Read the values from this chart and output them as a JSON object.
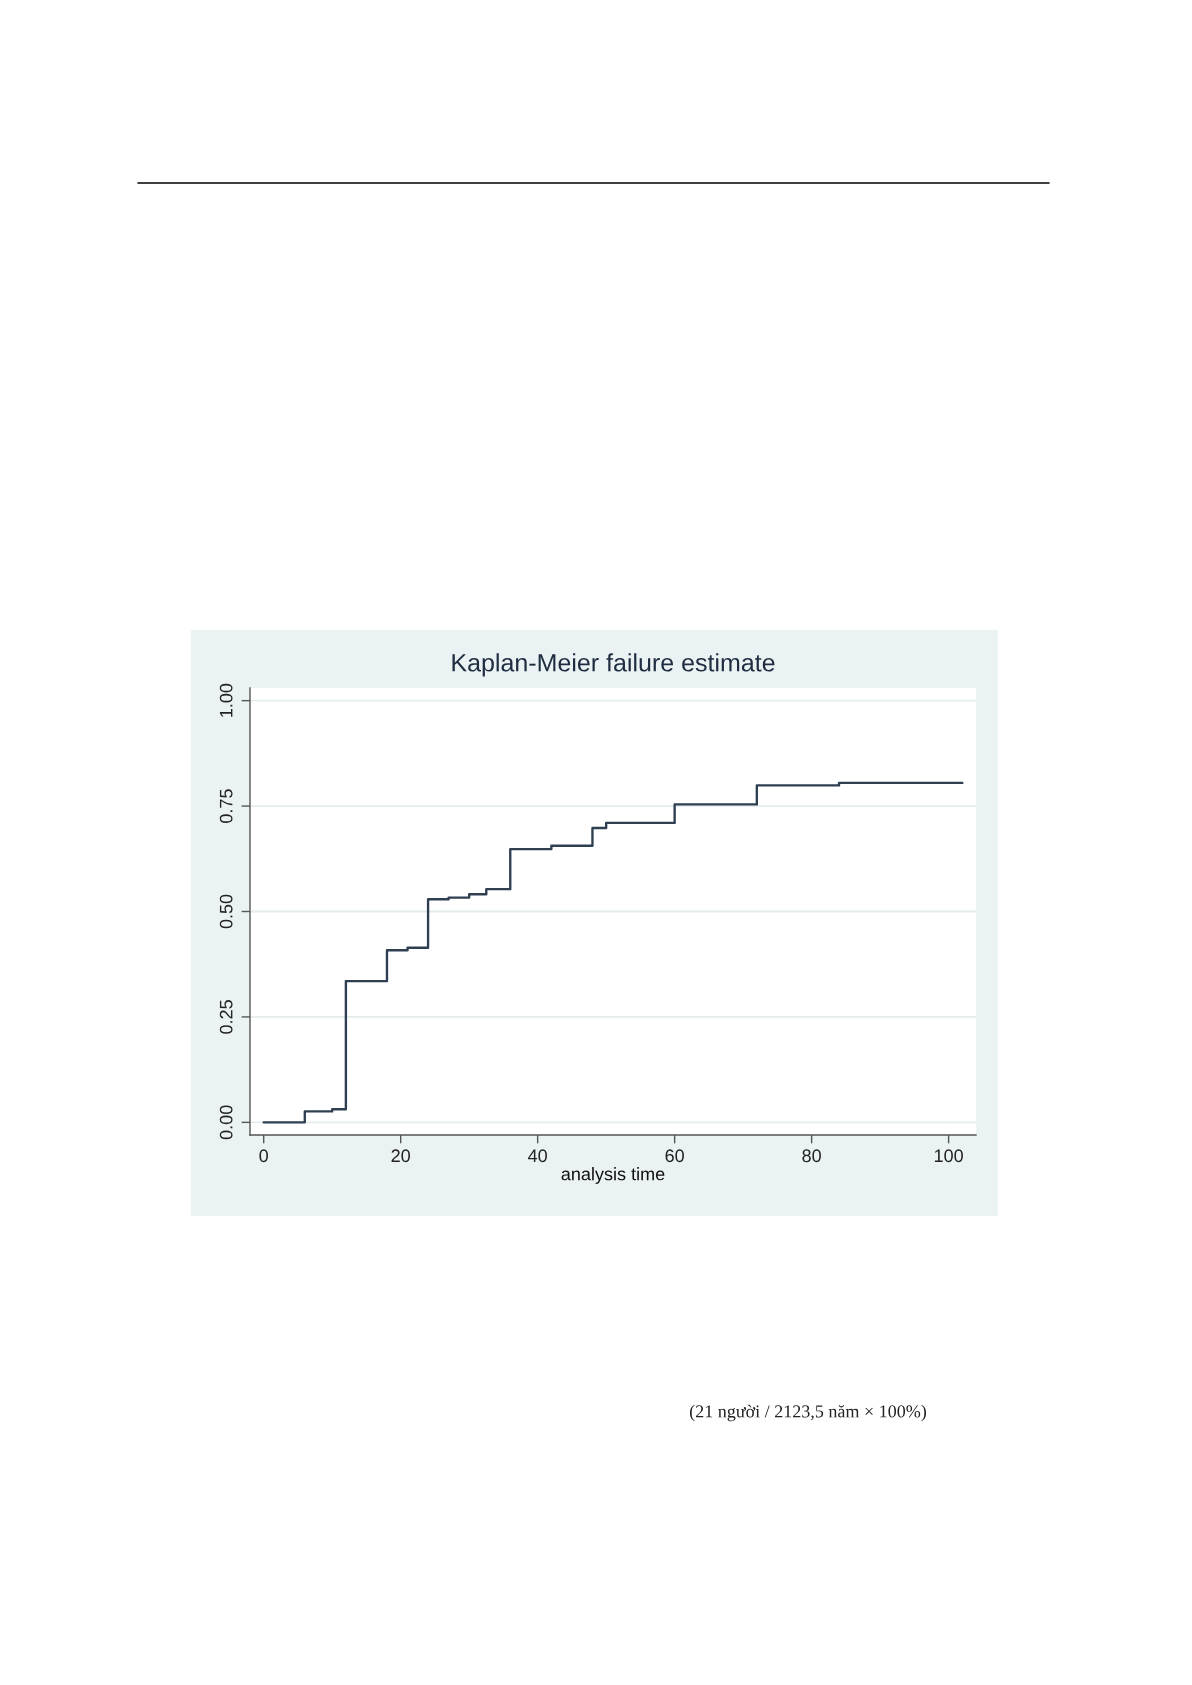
{
  "chart_data": {
    "type": "step",
    "title": "Kaplan-Meier failure estimate",
    "xlabel": "analysis time",
    "x": [
      0,
      6,
      10,
      12,
      18,
      21,
      24,
      27,
      30,
      32.5,
      36,
      42,
      48,
      50,
      60,
      72,
      84,
      102
    ],
    "values": [
      0,
      0.026,
      0.031,
      0.335,
      0.408,
      0.414,
      0.529,
      0.533,
      0.541,
      0.553,
      0.648,
      0.656,
      0.698,
      0.71,
      0.754,
      0.799,
      0.805,
      0.805
    ],
    "color": "#2f3f52",
    "xlim": [
      -2,
      104
    ],
    "ylim": [
      -0.03,
      1.03
    ],
    "xticks": [
      0,
      20,
      40,
      60,
      80,
      100
    ],
    "yticks": [
      {
        "value": 0,
        "label": "0.00"
      },
      {
        "value": 0.25,
        "label": "0.25"
      },
      {
        "value": 0.5,
        "label": "0.50"
      },
      {
        "value": 0.75,
        "label": "0.75"
      },
      {
        "value": 1,
        "label": "1.00"
      }
    ],
    "grid": "y",
    "annotations": [
      "(21 người / 2123,5 năm × 100%)"
    ]
  }
}
